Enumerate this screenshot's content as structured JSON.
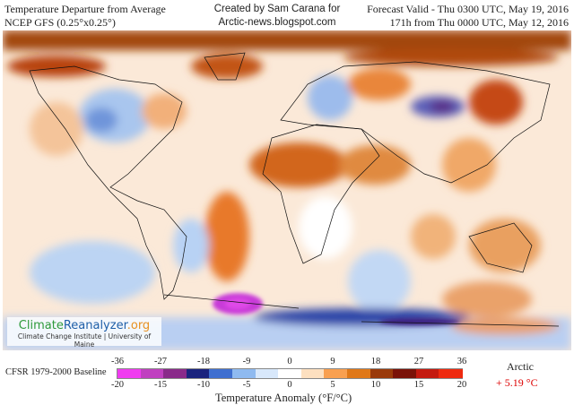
{
  "header": {
    "title_line1": "Temperature Departure from Average",
    "title_line2": "NCEP GFS (0.25°x0.25°)",
    "credit_line1": "Created by Sam Carana for",
    "credit_line2": "Arctic-news.blogspot.com",
    "forecast_line1": "Forecast Valid - Thu 0300 UTC, May 19, 2016",
    "forecast_line2": "171h from Thu 0000 UTC, May 12, 2016"
  },
  "logo": {
    "name_part1": "Climate",
    "name_part2": "Reanalyzer",
    "name_part3": ".org",
    "subtitle": "Climate Change Institute | University of Maine"
  },
  "legend": {
    "baseline": "CFSR 1979-2000 Baseline",
    "fahrenheit_ticks": [
      "-36",
      "-27",
      "-18",
      "-9",
      "0",
      "9",
      "18",
      "27",
      "36"
    ],
    "celsius_ticks": [
      "-20",
      "-15",
      "-10",
      "-5",
      "0",
      "5",
      "10",
      "15",
      "20"
    ],
    "axis_label": "Temperature Anomaly (°F/°C)",
    "colors": [
      "#f03cf0",
      "#c040c0",
      "#8a2a8a",
      "#1a237e",
      "#3f6fd0",
      "#8fbaf0",
      "#d8e8fb",
      "#ffffff",
      "#fde0c0",
      "#f9a050",
      "#e07818",
      "#9a3a0a",
      "#7a1208",
      "#c41a10",
      "#ee2a10"
    ]
  },
  "arctic": {
    "label": "Arctic",
    "value": "+ 5.19 °C"
  }
}
